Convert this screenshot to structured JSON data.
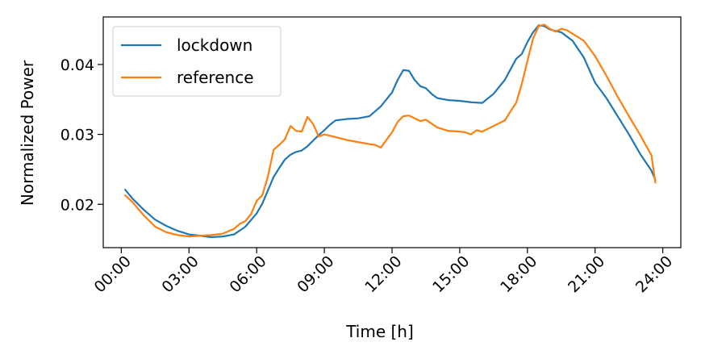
{
  "chart_data": {
    "type": "line",
    "title": "",
    "xlabel": "Time [h]",
    "ylabel": "Normalized Power",
    "xlim": [
      -0.8,
      24.8
    ],
    "ylim": [
      0.0138,
      0.0468
    ],
    "xticks": [
      0,
      3,
      6,
      9,
      12,
      15,
      18,
      21,
      24
    ],
    "xtick_labels": [
      "00:00",
      "03:00",
      "06:00",
      "09:00",
      "12:00",
      "15:00",
      "18:00",
      "21:00",
      "24:00"
    ],
    "yticks": [
      0.02,
      0.03,
      0.04
    ],
    "ytick_labels": [
      "0.02",
      "0.03",
      "0.04"
    ],
    "grid": false,
    "legend": {
      "placement": "top-left"
    },
    "series": [
      {
        "name": "lockdown",
        "color": "#1f77b4",
        "x": [
          0.17,
          0.5,
          1,
          1.5,
          2,
          2.5,
          3,
          3.5,
          4,
          4.5,
          5,
          5.5,
          6,
          6.25,
          6.5,
          6.75,
          7,
          7.25,
          7.5,
          7.75,
          8,
          8.25,
          8.5,
          8.75,
          9,
          9.25,
          9.5,
          10,
          10.5,
          11,
          11.5,
          11.75,
          12,
          12.25,
          12.5,
          12.75,
          13,
          13.25,
          13.5,
          13.75,
          14,
          14.5,
          15,
          15.5,
          16,
          16.5,
          17,
          17.5,
          17.75,
          18,
          18.25,
          18.5,
          18.75,
          19,
          19.25,
          19.5,
          19.75,
          20,
          20.5,
          21,
          21.5,
          22,
          22.5,
          23,
          23.5,
          23.67
        ],
        "y": [
          0.0221,
          0.0208,
          0.0192,
          0.0178,
          0.0169,
          0.0162,
          0.0157,
          0.0155,
          0.0153,
          0.0154,
          0.0157,
          0.0168,
          0.0187,
          0.0201,
          0.022,
          0.0239,
          0.0252,
          0.0264,
          0.0271,
          0.0275,
          0.0277,
          0.0283,
          0.0291,
          0.0299,
          0.0306,
          0.0314,
          0.032,
          0.0322,
          0.0323,
          0.0326,
          0.034,
          0.035,
          0.036,
          0.0378,
          0.0392,
          0.0391,
          0.0378,
          0.0369,
          0.0366,
          0.0358,
          0.0352,
          0.0349,
          0.0348,
          0.0346,
          0.0345,
          0.0358,
          0.0378,
          0.0408,
          0.0415,
          0.0432,
          0.0446,
          0.0456,
          0.0455,
          0.045,
          0.0448,
          0.0446,
          0.044,
          0.0434,
          0.041,
          0.0374,
          0.0352,
          0.0326,
          0.03,
          0.0272,
          0.0248,
          0.0235
        ]
      },
      {
        "name": "reference",
        "color": "#ff7f0e",
        "x": [
          0.17,
          0.5,
          1,
          1.5,
          2,
          2.5,
          3,
          3.5,
          4,
          4.5,
          5,
          5.25,
          5.5,
          5.75,
          6,
          6.25,
          6.5,
          6.75,
          7,
          7.25,
          7.5,
          7.75,
          8,
          8.25,
          8.5,
          8.75,
          9,
          9.5,
          10,
          10.5,
          11,
          11.25,
          11.5,
          12,
          12.25,
          12.5,
          12.75,
          13,
          13.25,
          13.5,
          14,
          14.5,
          15,
          15.25,
          15.5,
          15.75,
          16,
          16.5,
          17,
          17.25,
          17.5,
          17.75,
          18,
          18.25,
          18.5,
          18.75,
          19,
          19.25,
          19.5,
          19.75,
          20,
          20.5,
          21,
          21.5,
          22,
          22.5,
          23,
          23.5,
          23.67
        ],
        "y": [
          0.0213,
          0.0203,
          0.0184,
          0.0168,
          0.016,
          0.0156,
          0.0154,
          0.0155,
          0.0156,
          0.0158,
          0.0165,
          0.0172,
          0.0176,
          0.0186,
          0.0205,
          0.0213,
          0.024,
          0.0278,
          0.0285,
          0.0293,
          0.0312,
          0.0305,
          0.0304,
          0.0325,
          0.0315,
          0.0297,
          0.03,
          0.0296,
          0.0292,
          0.0289,
          0.0286,
          0.0285,
          0.0281,
          0.0303,
          0.0318,
          0.0326,
          0.0327,
          0.0323,
          0.0319,
          0.0321,
          0.031,
          0.0305,
          0.0304,
          0.0303,
          0.03,
          0.0306,
          0.0304,
          0.0312,
          0.032,
          0.0333,
          0.0345,
          0.0372,
          0.0405,
          0.0437,
          0.0455,
          0.0457,
          0.0451,
          0.0447,
          0.0451,
          0.0449,
          0.0444,
          0.0434,
          0.0412,
          0.0384,
          0.0354,
          0.0326,
          0.0299,
          0.027,
          0.0231
        ]
      }
    ]
  }
}
